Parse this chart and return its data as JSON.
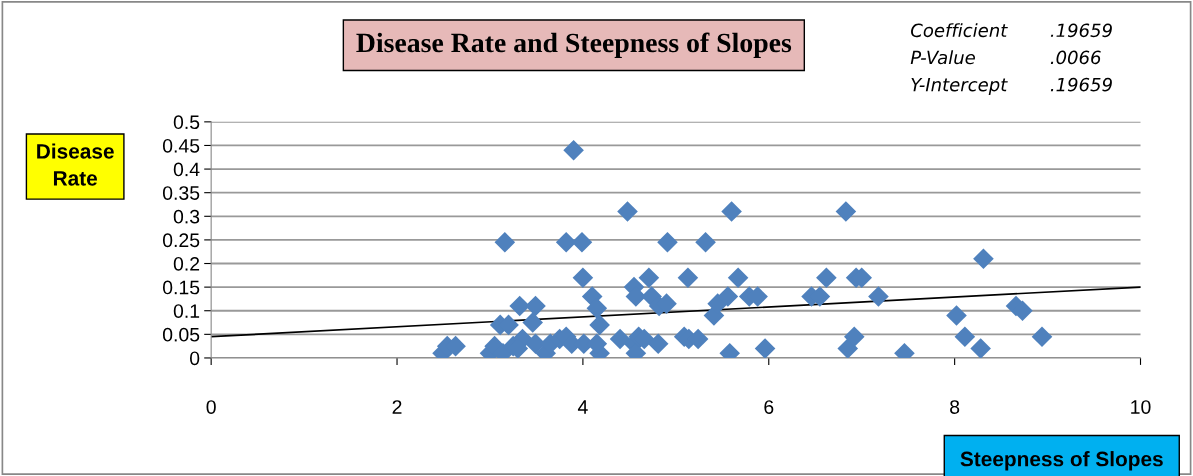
{
  "chart_data": {
    "type": "scatter",
    "title": "Disease Rate and Steepness of Slopes",
    "xlabel": "Steepness of Slopes",
    "ylabel": "Disease Rate",
    "annotations": [
      "Coefficient",
      ".19659",
      "P-Value",
      ".0066",
      "Y-Intercept",
      ".19659"
    ],
    "series": [
      {
        "color": "#4f81bd",
        "marker": "diamond",
        "x": [
          2.49,
          2.54,
          2.63,
          3.0,
          3.05,
          3.11,
          3.16,
          3.14,
          3.2,
          3.25,
          3.32,
          3.35,
          3.3,
          3.46,
          3.49,
          3.49,
          3.6,
          3.65,
          3.75,
          3.82,
          3.82,
          3.88,
          3.9,
          3.99,
          4.0,
          4.01,
          4.1,
          4.15,
          4.18,
          4.18,
          4.15,
          4.4,
          4.48,
          4.55,
          4.55,
          4.57,
          4.57,
          4.6,
          4.66,
          4.71,
          4.74,
          4.81,
          4.82,
          4.9,
          4.91,
          5.09,
          5.13,
          5.14,
          5.24,
          5.32,
          5.41,
          5.45,
          5.56,
          5.58,
          5.6,
          5.67,
          5.79,
          5.88,
          5.96,
          6.46,
          6.55,
          6.62,
          6.83,
          6.85,
          6.92,
          6.94,
          7.0,
          7.18,
          7.46,
          8.02,
          8.11,
          8.31,
          8.28,
          8.66,
          8.73,
          8.94
        ],
        "values": [
          0.01,
          0.025,
          0.025,
          0.01,
          0.025,
          0.07,
          0.245,
          0.01,
          0.07,
          0.025,
          0.11,
          0.04,
          0.02,
          0.075,
          0.11,
          0.03,
          0.01,
          0.03,
          0.04,
          0.045,
          0.245,
          0.03,
          0.44,
          0.245,
          0.17,
          0.03,
          0.13,
          0.105,
          0.07,
          0.01,
          0.03,
          0.04,
          0.31,
          0.03,
          0.15,
          0.13,
          0.01,
          0.045,
          0.04,
          0.17,
          0.13,
          0.03,
          0.11,
          0.115,
          0.245,
          0.045,
          0.17,
          0.04,
          0.04,
          0.245,
          0.09,
          0.115,
          0.13,
          0.01,
          0.31,
          0.17,
          0.13,
          0.13,
          0.02,
          0.13,
          0.13,
          0.17,
          0.31,
          0.02,
          0.045,
          0.17,
          0.17,
          0.13,
          0.01,
          0.09,
          0.045,
          0.21,
          0.02,
          0.11,
          0.1,
          0.045
        ]
      },
      {
        "type": "line",
        "color": "#000000",
        "marker": "none",
        "x": [
          0,
          10
        ],
        "values": [
          0.045,
          0.15
        ]
      }
    ],
    "xlim": [
      0,
      10
    ],
    "xticks": [
      0,
      2,
      4,
      6,
      8,
      10
    ],
    "ylim": [
      0,
      0.5
    ],
    "yticks": [
      0,
      0.05,
      0.1,
      0.15,
      0.2,
      0.25,
      0.3,
      0.35,
      0.4,
      0.45,
      0.5
    ],
    "grid": "y",
    "legend": false
  }
}
